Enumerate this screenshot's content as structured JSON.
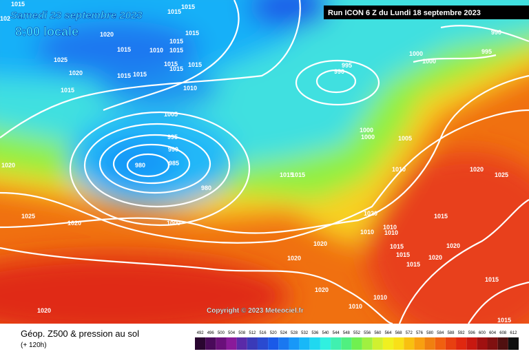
{
  "header": {
    "date": "Samedi 23 septembre 2023",
    "time": "8:00 locale",
    "run": "Run ICON 6 Z du Lundi 18 septembre 2023"
  },
  "isobars": [
    "1015",
    "1015",
    "1015",
    "1020",
    "1015",
    "1015",
    "1010",
    "1015",
    "1015",
    "1025",
    "1015",
    "1015",
    "1015",
    "1020",
    "1015",
    "1015",
    "1015",
    "1010",
    "1005",
    "995",
    "990",
    "985",
    "980",
    "980",
    "1020",
    "1025",
    "1020",
    "1000",
    "995",
    "990",
    "990",
    "995",
    "1000",
    "1000",
    "1000",
    "1000",
    "1005",
    "1010",
    "1020",
    "1025",
    "1015",
    "1015",
    "1020",
    "1015",
    "1010",
    "1010",
    "1010",
    "1020",
    "1015",
    "1020",
    "1015",
    "1015",
    "1020",
    "1020",
    "1015",
    "1020",
    "1010",
    "1010",
    "1020",
    "1015",
    "102"
  ],
  "copyright": "Copyright © 2023 Meteociel.fr",
  "legend": {
    "title": "Géop. Z500 & pression au sol",
    "lead": "(+ 120h)",
    "values": [
      492,
      496,
      500,
      504,
      508,
      512,
      516,
      520,
      524,
      528,
      532,
      536,
      540,
      544,
      548,
      552,
      556,
      560,
      564,
      568,
      572,
      576,
      580,
      584,
      588,
      592,
      596,
      600,
      604,
      608,
      612
    ],
    "colors": [
      "#2a0630",
      "#4a0a5a",
      "#6a107a",
      "#8a1a9a",
      "#5a2aa8",
      "#3a3ab8",
      "#2a4ad0",
      "#1a5ae8",
      "#1a78f0",
      "#1898f8",
      "#18b8f8",
      "#20d8f0",
      "#30f0e0",
      "#40f0b0",
      "#50f080",
      "#70f050",
      "#a0f040",
      "#d0f030",
      "#f0f020",
      "#f8e018",
      "#f8c010",
      "#f8a010",
      "#f08010",
      "#f06010",
      "#e84010",
      "#e02810",
      "#c81810",
      "#a01010",
      "#801010",
      "#501010",
      "#101010"
    ]
  }
}
